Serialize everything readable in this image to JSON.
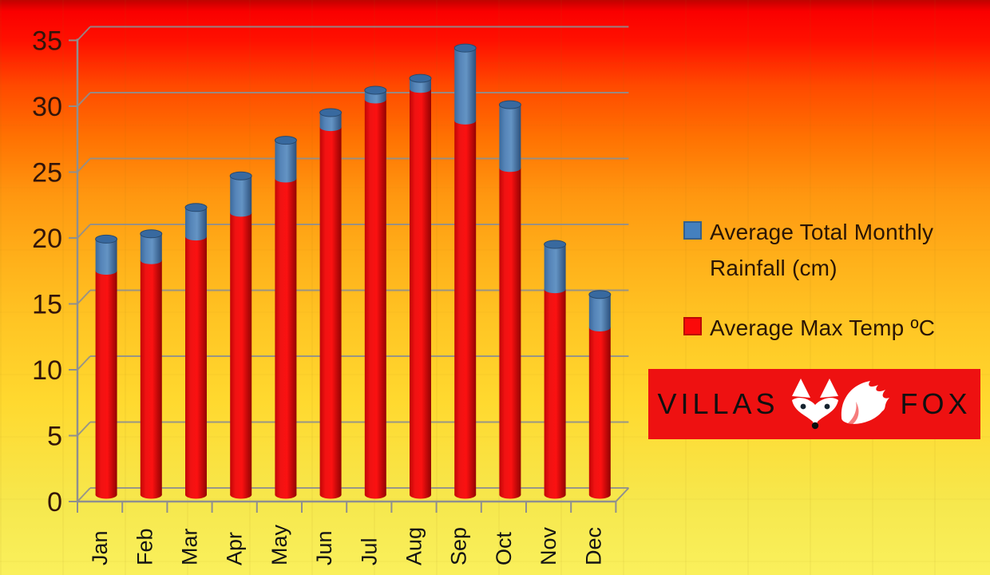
{
  "chart_data": {
    "type": "bar",
    "variant": "stacked-3d-cylinders",
    "title": "",
    "xlabel": "",
    "ylabel": "",
    "categories": [
      "Jan",
      "Feb",
      "Mar",
      "Apr",
      "May",
      "Jun",
      "Jul",
      "Aug",
      "Sep",
      "Oct",
      "Nov",
      "Dec"
    ],
    "series": [
      {
        "name": "Average Max Temp ºC",
        "color": "#EE1010",
        "values": [
          17.0,
          17.8,
          19.6,
          21.4,
          24.0,
          27.9,
          30.0,
          30.8,
          28.4,
          24.8,
          15.6,
          12.7
        ]
      },
      {
        "name": "Average Total Monthly Rainfall (cm)",
        "color": "#4F81BD",
        "values": [
          2.4,
          2.0,
          2.2,
          2.8,
          2.9,
          1.1,
          0.7,
          0.8,
          5.5,
          4.8,
          3.4,
          2.5
        ]
      }
    ],
    "stacked": true,
    "ylim": [
      0,
      35
    ],
    "ytick_step": 5,
    "grid": true,
    "legend_position": "right"
  },
  "axis": {
    "y_tick_labels": [
      "0",
      "5",
      "10",
      "15",
      "20",
      "25",
      "30",
      "35"
    ],
    "tick_label_color": "#33150a",
    "month_label_color": "#141414",
    "line_color": "#8f8f8f"
  },
  "legend": {
    "items": [
      {
        "swatch_color": "#4480BE",
        "lines": [
          "Average Total Monthly",
          "Rainfall (cm)"
        ]
      },
      {
        "swatch_color": "#FB0A0A",
        "lines": [
          "Average Max Temp ºC"
        ]
      }
    ]
  },
  "logo": {
    "villas": "VILLAS",
    "fox": "FOX",
    "bg_color": "#EE1111",
    "icon": "fox-icon"
  }
}
